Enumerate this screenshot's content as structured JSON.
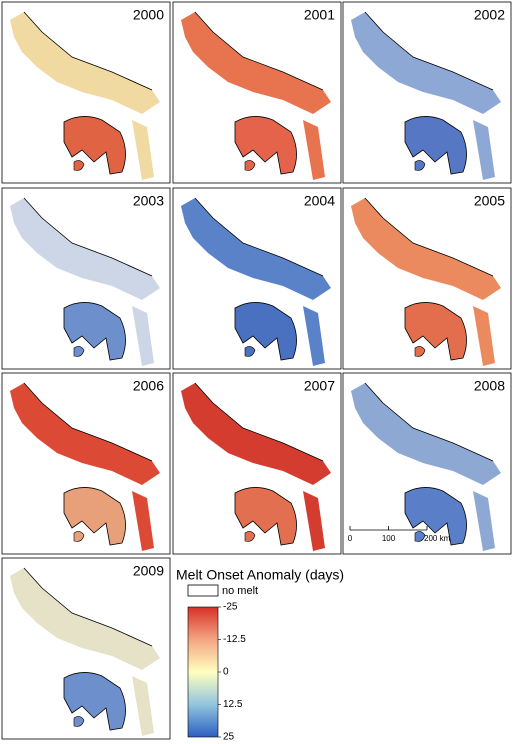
{
  "panels": [
    {
      "year": "2000",
      "colors": [
        "#f1d9a2",
        "#e06444"
      ]
    },
    {
      "year": "2001",
      "colors": [
        "#e8744f",
        "#e5634a"
      ]
    },
    {
      "year": "2002",
      "colors": [
        "#8ea8d6",
        "#5577c4"
      ]
    },
    {
      "year": "2003",
      "colors": [
        "#cdd6e6",
        "#6d8fcc"
      ]
    },
    {
      "year": "2004",
      "colors": [
        "#5a82c8",
        "#4a70c0"
      ]
    },
    {
      "year": "2005",
      "colors": [
        "#eb8a5e",
        "#e36e4e"
      ]
    },
    {
      "year": "2006",
      "colors": [
        "#dc4a36",
        "#e8a07a"
      ]
    },
    {
      "year": "2007",
      "colors": [
        "#d43c30",
        "#e27050"
      ]
    },
    {
      "year": "2008",
      "colors": [
        "#8ea8d4",
        "#5a7fc8"
      ]
    },
    {
      "year": "2009",
      "colors": [
        "#e6e2c8",
        "#6d8fcc"
      ]
    }
  ],
  "legend": {
    "title": "Melt Onset Anomaly (days)",
    "no_melt": "no melt",
    "range": [
      -25,
      25
    ],
    "ticks": [
      -25,
      -12.5,
      0,
      12.5,
      25
    ],
    "colors": [
      "#d73027",
      "#f4a582",
      "#ffffbf",
      "#92c5de",
      "#2c5fc0"
    ]
  },
  "scale_bar": {
    "range": [
      0,
      200
    ],
    "ticks": [
      0,
      100,
      {
        "value": 200,
        "label": "200 km"
      }
    ]
  }
}
